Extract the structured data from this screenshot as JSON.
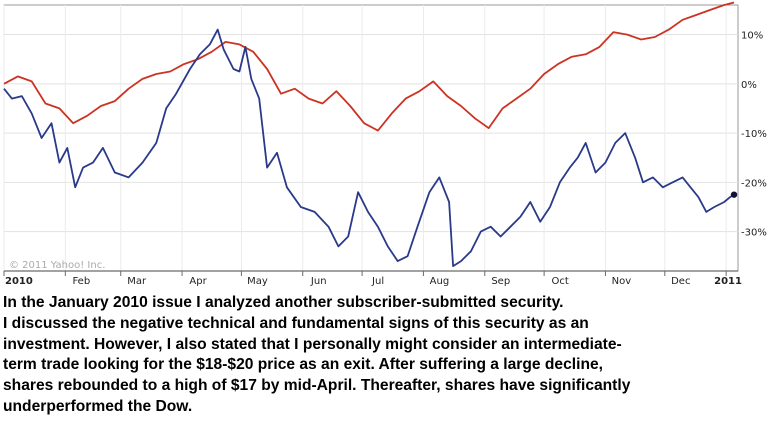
{
  "chart_data": {
    "type": "line",
    "watermark": "© 2011 Yahoo! Inc.",
    "x_ticks": [
      "2010",
      "Feb",
      "Mar",
      "Apr",
      "May",
      "Jun",
      "Jul",
      "Aug",
      "Sep",
      "Oct",
      "Nov",
      "Dec",
      "2011"
    ],
    "y_ticks": [
      "10%",
      "0%",
      "-10%",
      "-20%",
      "-30%"
    ],
    "y_tick_values": [
      10,
      0,
      -10,
      -20,
      -30
    ],
    "ylim": [
      -38,
      16
    ],
    "x_range": [
      "2010-01-01",
      "2011-01-07"
    ],
    "grid": true,
    "series": [
      {
        "color": "#cc3322",
        "points": [
          [
            "2010-01-01",
            0
          ],
          [
            "2010-01-08",
            1.5
          ],
          [
            "2010-01-15",
            0.5
          ],
          [
            "2010-01-22",
            -4
          ],
          [
            "2010-01-29",
            -5
          ],
          [
            "2010-02-05",
            -8
          ],
          [
            "2010-02-12",
            -6.5
          ],
          [
            "2010-02-19",
            -4.5
          ],
          [
            "2010-02-26",
            -3.5
          ],
          [
            "2010-03-05",
            -1
          ],
          [
            "2010-03-12",
            1
          ],
          [
            "2010-03-19",
            2
          ],
          [
            "2010-03-26",
            2.5
          ],
          [
            "2010-04-02",
            4
          ],
          [
            "2010-04-09",
            5
          ],
          [
            "2010-04-16",
            6.5
          ],
          [
            "2010-04-23",
            8.5
          ],
          [
            "2010-04-30",
            8
          ],
          [
            "2010-05-07",
            6.5
          ],
          [
            "2010-05-14",
            3
          ],
          [
            "2010-05-21",
            -2
          ],
          [
            "2010-05-28",
            -1
          ],
          [
            "2010-06-04",
            -3
          ],
          [
            "2010-06-11",
            -4
          ],
          [
            "2010-06-18",
            -1.5
          ],
          [
            "2010-06-25",
            -4.5
          ],
          [
            "2010-07-02",
            -8
          ],
          [
            "2010-07-09",
            -9.5
          ],
          [
            "2010-07-16",
            -6
          ],
          [
            "2010-07-23",
            -3
          ],
          [
            "2010-07-30",
            -1.5
          ],
          [
            "2010-08-06",
            0.5
          ],
          [
            "2010-08-13",
            -2.5
          ],
          [
            "2010-08-20",
            -4.5
          ],
          [
            "2010-08-27",
            -7
          ],
          [
            "2010-09-03",
            -9
          ],
          [
            "2010-09-10",
            -5
          ],
          [
            "2010-09-17",
            -3
          ],
          [
            "2010-09-24",
            -1
          ],
          [
            "2010-10-01",
            2
          ],
          [
            "2010-10-08",
            4
          ],
          [
            "2010-10-15",
            5.5
          ],
          [
            "2010-10-22",
            6
          ],
          [
            "2010-10-29",
            7.5
          ],
          [
            "2010-11-05",
            10.5
          ],
          [
            "2010-11-12",
            10
          ],
          [
            "2010-11-19",
            9
          ],
          [
            "2010-11-26",
            9.5
          ],
          [
            "2010-12-03",
            11
          ],
          [
            "2010-12-10",
            13
          ],
          [
            "2010-12-17",
            14
          ],
          [
            "2010-12-24",
            15
          ],
          [
            "2010-12-31",
            16
          ],
          [
            "2011-01-05",
            16.5
          ]
        ]
      },
      {
        "color": "#2a3a8a",
        "points": [
          [
            "2010-01-01",
            -1
          ],
          [
            "2010-01-05",
            -3
          ],
          [
            "2010-01-10",
            -2.5
          ],
          [
            "2010-01-15",
            -6
          ],
          [
            "2010-01-20",
            -11
          ],
          [
            "2010-01-25",
            -8
          ],
          [
            "2010-01-29",
            -16
          ],
          [
            "2010-02-02",
            -13
          ],
          [
            "2010-02-06",
            -21
          ],
          [
            "2010-02-10",
            -17
          ],
          [
            "2010-02-15",
            -16
          ],
          [
            "2010-02-20",
            -13
          ],
          [
            "2010-02-26",
            -18
          ],
          [
            "2010-03-05",
            -19
          ],
          [
            "2010-03-12",
            -16
          ],
          [
            "2010-03-19",
            -12
          ],
          [
            "2010-03-24",
            -5
          ],
          [
            "2010-03-29",
            -2
          ],
          [
            "2010-04-05",
            3
          ],
          [
            "2010-04-10",
            6
          ],
          [
            "2010-04-15",
            8
          ],
          [
            "2010-04-19",
            11
          ],
          [
            "2010-04-22",
            7
          ],
          [
            "2010-04-27",
            3
          ],
          [
            "2010-04-30",
            2.5
          ],
          [
            "2010-05-03",
            7.5
          ],
          [
            "2010-05-06",
            1
          ],
          [
            "2010-05-10",
            -3
          ],
          [
            "2010-05-14",
            -17
          ],
          [
            "2010-05-19",
            -14
          ],
          [
            "2010-05-24",
            -21
          ],
          [
            "2010-05-31",
            -25
          ],
          [
            "2010-06-07",
            -26
          ],
          [
            "2010-06-14",
            -29
          ],
          [
            "2010-06-19",
            -33
          ],
          [
            "2010-06-24",
            -31
          ],
          [
            "2010-06-29",
            -22
          ],
          [
            "2010-07-04",
            -26
          ],
          [
            "2010-07-09",
            -29
          ],
          [
            "2010-07-14",
            -33
          ],
          [
            "2010-07-19",
            -36
          ],
          [
            "2010-07-24",
            -35
          ],
          [
            "2010-07-29",
            -29
          ],
          [
            "2010-08-04",
            -22
          ],
          [
            "2010-08-09",
            -19
          ],
          [
            "2010-08-14",
            -24
          ],
          [
            "2010-08-16",
            -37
          ],
          [
            "2010-08-20",
            -36
          ],
          [
            "2010-08-25",
            -34
          ],
          [
            "2010-08-30",
            -30
          ],
          [
            "2010-09-04",
            -29
          ],
          [
            "2010-09-09",
            -31
          ],
          [
            "2010-09-14",
            -29
          ],
          [
            "2010-09-19",
            -27
          ],
          [
            "2010-09-24",
            -24
          ],
          [
            "2010-09-29",
            -28
          ],
          [
            "2010-10-04",
            -25
          ],
          [
            "2010-10-09",
            -20
          ],
          [
            "2010-10-14",
            -17
          ],
          [
            "2010-10-18",
            -15
          ],
          [
            "2010-10-22",
            -12
          ],
          [
            "2010-10-27",
            -18
          ],
          [
            "2010-11-01",
            -16
          ],
          [
            "2010-11-06",
            -12
          ],
          [
            "2010-11-11",
            -10
          ],
          [
            "2010-11-16",
            -15
          ],
          [
            "2010-11-20",
            -20
          ],
          [
            "2010-11-25",
            -19
          ],
          [
            "2010-11-30",
            -21
          ],
          [
            "2010-12-05",
            -20
          ],
          [
            "2010-12-10",
            -19
          ],
          [
            "2010-12-14",
            -21
          ],
          [
            "2010-12-18",
            -23
          ],
          [
            "2010-12-22",
            -26
          ],
          [
            "2010-12-26",
            -25
          ],
          [
            "2010-12-31",
            -24
          ],
          [
            "2011-01-03",
            -23
          ],
          [
            "2011-01-05",
            -22.5
          ]
        ]
      }
    ]
  },
  "caption": {
    "lines": [
      "In the January 2010 issue I analyzed another subscriber-submitted security.",
      "I discussed the negative technical and fundamental signs of this security as an",
      "investment. However, I also stated that I personally might consider an intermediate-",
      "term trade looking for the $18-$20 price as an exit. After suffering a large decline,",
      "shares rebounded to a high of $17 by mid-April. Thereafter, shares have significantly",
      "underperformed the Dow."
    ]
  }
}
